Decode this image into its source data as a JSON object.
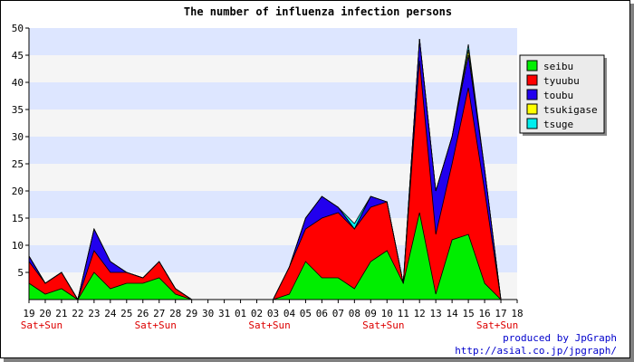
{
  "chart_data": {
    "type": "area",
    "stacked": true,
    "title": "The number of influenza infection persons",
    "xlabel": "",
    "ylabel": "",
    "ylim": [
      0,
      50
    ],
    "yticks": [
      5,
      10,
      15,
      20,
      25,
      30,
      35,
      40,
      45,
      50
    ],
    "grid": true,
    "legend_position": "right",
    "categories": [
      "19",
      "20",
      "21",
      "22",
      "23",
      "24",
      "25",
      "26",
      "27",
      "28",
      "29",
      "30",
      "31",
      "01",
      "02",
      "03",
      "04",
      "05",
      "06",
      "07",
      "08",
      "09",
      "10",
      "11",
      "12",
      "13",
      "14",
      "15",
      "16",
      "17",
      "18"
    ],
    "weekend_labels": [
      {
        "category_index": 1,
        "text": "Sat+Sun"
      },
      {
        "category_index": 8,
        "text": "Sat+Sun"
      },
      {
        "category_index": 15,
        "text": "Sat+Sun"
      },
      {
        "category_index": 22,
        "text": "Sat+Sun"
      },
      {
        "category_index": 29,
        "text": "Sat+Sun"
      }
    ],
    "series": [
      {
        "name": "seibu",
        "color": "#00ee00",
        "values": [
          3,
          1,
          2,
          0,
          5,
          2,
          3,
          3,
          4,
          1,
          0,
          0,
          0,
          0,
          0,
          0,
          1,
          7,
          4,
          4,
          2,
          7,
          9,
          3,
          16,
          1,
          11,
          12,
          3,
          0,
          0
        ]
      },
      {
        "name": "tyuubu",
        "color": "#ff0000",
        "values": [
          4,
          2,
          3,
          0,
          4,
          3,
          2,
          1,
          3,
          1,
          0,
          0,
          0,
          0,
          0,
          0,
          5,
          6,
          11,
          12,
          11,
          10,
          9,
          0,
          28,
          11,
          14,
          27,
          17,
          0,
          0
        ]
      },
      {
        "name": "toubu",
        "color": "#2200ee",
        "values": [
          1,
          0,
          0,
          0,
          4,
          2,
          0,
          0,
          0,
          0,
          0,
          0,
          0,
          0,
          0,
          0,
          0,
          2,
          4,
          1,
          0,
          2,
          0,
          0,
          4,
          8,
          5,
          6,
          4,
          0,
          0
        ]
      },
      {
        "name": "tsukigase",
        "color": "#ffff00",
        "values": [
          0,
          0,
          0,
          0,
          0,
          0,
          0,
          0,
          0,
          0,
          0,
          0,
          0,
          0,
          0,
          0,
          0,
          0,
          0,
          0,
          0,
          0,
          0,
          0,
          0,
          0,
          0,
          1,
          0,
          0,
          0
        ]
      },
      {
        "name": "tsuge",
        "color": "#00eeee",
        "values": [
          0,
          0,
          0,
          0,
          0,
          0,
          0,
          0,
          0,
          0,
          0,
          0,
          0,
          0,
          0,
          0,
          0,
          0,
          0,
          0,
          1,
          0,
          0,
          0,
          0,
          0,
          0,
          1,
          0,
          0,
          0
        ]
      }
    ],
    "colors": {
      "band_light": "#f5f5f5",
      "band_blue": "#dde6ff",
      "weekend_label": "#dd0000",
      "credit": "#0000cc"
    }
  },
  "credit": {
    "line1": "produced by JpGraph",
    "line2": "http://asial.co.jp/jpgraph/"
  }
}
